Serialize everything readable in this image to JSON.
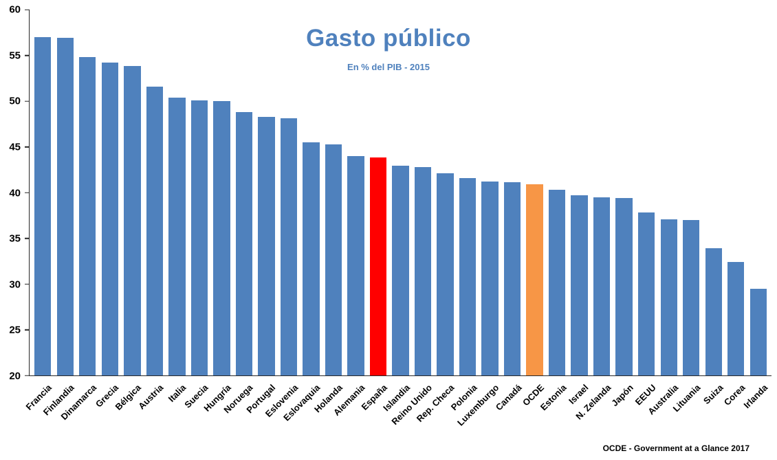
{
  "chart_data": {
    "type": "bar",
    "title": "Gasto público",
    "subtitle": "En % del PIB - 2015",
    "source": "OCDE - Government at a Glance 2017",
    "xlabel": "",
    "ylabel": "",
    "ylim": [
      20,
      60
    ],
    "ytick_step": 5,
    "grid": false,
    "legend": "none",
    "categories": [
      "Francia",
      "Finlandia",
      "Dinamarca",
      "Grecia",
      "Bélgica",
      "Austria",
      "Italia",
      "Suecia",
      "Hungría",
      "Noruega",
      "Portugal",
      "Eslovenia",
      "Eslovaquia",
      "Holanda",
      "Alemania",
      "España",
      "Islandia",
      "Reino Unido",
      "Rep. Checa",
      "Polonia",
      "Luxemburgo",
      "Canadá",
      "OCDE",
      "Estonia",
      "Israel",
      "N. Zelanda",
      "Japón",
      "EEUU",
      "Australia",
      "Lituania",
      "Suiza",
      "Corea",
      "Irlanda"
    ],
    "values": [
      57.0,
      56.9,
      54.8,
      54.2,
      53.8,
      51.6,
      50.4,
      50.1,
      50.0,
      48.8,
      48.3,
      48.1,
      45.5,
      45.3,
      44.0,
      43.8,
      42.9,
      42.8,
      42.1,
      41.6,
      41.2,
      41.1,
      40.9,
      40.3,
      39.7,
      39.5,
      39.4,
      37.8,
      37.1,
      37.0,
      33.9,
      32.4,
      29.5
    ],
    "colors": {
      "bar_default": "#4F81BD",
      "title": "#4F81BD",
      "subtitle": "#4F81BD",
      "axis": "#262626"
    },
    "highlights": {
      "España": "#FF0000",
      "OCDE": "#F79646"
    }
  }
}
